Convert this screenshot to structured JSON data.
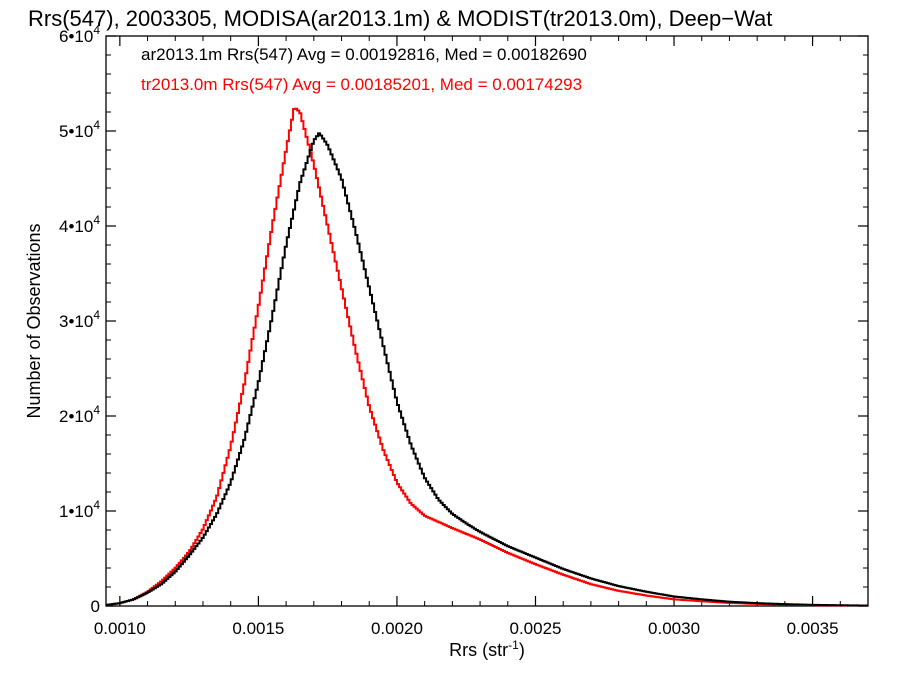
{
  "chart_data": {
    "type": "line",
    "title": "Rrs(547), 2003305, MODISA(ar2013.1m) & MODIST(tr2013.0m), Deep−Wat",
    "xlabel": "Rrs (str",
    "xlabel_sup": "-1",
    "xlabel_close": ")",
    "ylabel": "Number of Observations",
    "xlim": [
      0.00095,
      0.0037
    ],
    "ylim": [
      0,
      60000
    ],
    "x_ticks": [
      {
        "value": 0.001,
        "label": "0.0010"
      },
      {
        "value": 0.0015,
        "label": "0.0015"
      },
      {
        "value": 0.002,
        "label": "0.0020"
      },
      {
        "value": 0.0025,
        "label": "0.0025"
      },
      {
        "value": 0.003,
        "label": "0.0030"
      },
      {
        "value": 0.0035,
        "label": "0.0035"
      }
    ],
    "y_ticks": [
      {
        "value": 0,
        "label": "0",
        "sup": ""
      },
      {
        "value": 10000,
        "label": "1•10",
        "sup": "4"
      },
      {
        "value": 20000,
        "label": "2•10",
        "sup": "4"
      },
      {
        "value": 30000,
        "label": "3•10",
        "sup": "4"
      },
      {
        "value": 40000,
        "label": "4•10",
        "sup": "4"
      },
      {
        "value": 50000,
        "label": "5•10",
        "sup": "4"
      },
      {
        "value": 60000,
        "label": "6•10",
        "sup": "4"
      }
    ],
    "grid": false,
    "legend_position": "top-left",
    "series": [
      {
        "name": "ar2013.1m Rrs(547)",
        "legend_label": "ar2013.1m Rrs(547) Avg = 0.00192816, Med = 0.00182690",
        "color": "#000000",
        "points": [
          [
            0.00095,
            100
          ],
          [
            0.001,
            300
          ],
          [
            0.00105,
            700
          ],
          [
            0.0011,
            1400
          ],
          [
            0.00115,
            2300
          ],
          [
            0.0012,
            3600
          ],
          [
            0.00125,
            5300
          ],
          [
            0.0013,
            7200
          ],
          [
            0.00135,
            9700
          ],
          [
            0.0014,
            13000
          ],
          [
            0.00145,
            17600
          ],
          [
            0.0015,
            23500
          ],
          [
            0.00155,
            30500
          ],
          [
            0.0016,
            38000
          ],
          [
            0.00165,
            44500
          ],
          [
            0.0017,
            49000
          ],
          [
            0.00172,
            49800
          ],
          [
            0.00175,
            48500
          ],
          [
            0.0018,
            45000
          ],
          [
            0.00185,
            39500
          ],
          [
            0.0019,
            33500
          ],
          [
            0.00195,
            27500
          ],
          [
            0.002,
            21500
          ],
          [
            0.00205,
            17000
          ],
          [
            0.0021,
            13500
          ],
          [
            0.00215,
            11200
          ],
          [
            0.0022,
            9700
          ],
          [
            0.00225,
            8700
          ],
          [
            0.0023,
            7800
          ],
          [
            0.0024,
            6300
          ],
          [
            0.0025,
            5100
          ],
          [
            0.0026,
            3900
          ],
          [
            0.0027,
            2900
          ],
          [
            0.0028,
            2100
          ],
          [
            0.0029,
            1500
          ],
          [
            0.003,
            1000
          ],
          [
            0.0031,
            700
          ],
          [
            0.0032,
            450
          ],
          [
            0.0033,
            300
          ],
          [
            0.0034,
            200
          ],
          [
            0.0035,
            120
          ],
          [
            0.0036,
            80
          ],
          [
            0.0037,
            50
          ]
        ]
      },
      {
        "name": "tr2013.0m Rrs(547)",
        "legend_label": "tr2013.0m Rrs(547) Avg = 0.00185201, Med = 0.00174293",
        "color": "#ff0000",
        "points": [
          [
            0.00095,
            100
          ],
          [
            0.001,
            300
          ],
          [
            0.00105,
            700
          ],
          [
            0.0011,
            1500
          ],
          [
            0.00115,
            2600
          ],
          [
            0.0012,
            4000
          ],
          [
            0.00125,
            5700
          ],
          [
            0.0013,
            8100
          ],
          [
            0.00135,
            11500
          ],
          [
            0.0014,
            16800
          ],
          [
            0.00145,
            23500
          ],
          [
            0.0015,
            31500
          ],
          [
            0.00155,
            40000
          ],
          [
            0.0016,
            48000
          ],
          [
            0.00163,
            52500
          ],
          [
            0.00165,
            52000
          ],
          [
            0.0017,
            46500
          ],
          [
            0.00175,
            40000
          ],
          [
            0.0018,
            33500
          ],
          [
            0.00185,
            27000
          ],
          [
            0.0019,
            21000
          ],
          [
            0.00195,
            16500
          ],
          [
            0.002,
            13000
          ],
          [
            0.00205,
            10800
          ],
          [
            0.0021,
            9500
          ],
          [
            0.0022,
            8200
          ],
          [
            0.0023,
            7000
          ],
          [
            0.0024,
            5600
          ],
          [
            0.0025,
            4400
          ],
          [
            0.0026,
            3300
          ],
          [
            0.0027,
            2300
          ],
          [
            0.0028,
            1600
          ],
          [
            0.0029,
            1100
          ],
          [
            0.003,
            700
          ],
          [
            0.0031,
            500
          ],
          [
            0.0032,
            320
          ],
          [
            0.0033,
            220
          ],
          [
            0.0034,
            150
          ],
          [
            0.0035,
            90
          ],
          [
            0.0036,
            60
          ],
          [
            0.0037,
            40
          ]
        ]
      }
    ]
  }
}
